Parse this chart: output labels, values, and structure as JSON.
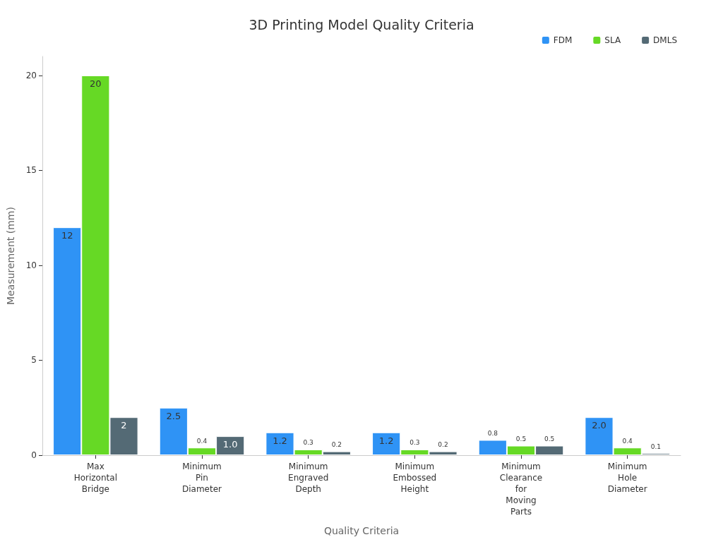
{
  "chart_data": {
    "type": "bar",
    "title": "3D Printing Model Quality Criteria",
    "xlabel": "Quality Criteria",
    "ylabel": "Measurement (mm)",
    "categories": [
      "Max\nHorizontal\nBridge",
      "Minimum\nPin\nDiameter",
      "Minimum\nEngraved\nDepth",
      "Minimum\nEmbossed\nHeight",
      "Minimum\nClearance\nfor\nMoving\nParts",
      "Minimum\nHole\nDiameter"
    ],
    "series": [
      {
        "name": "FDM",
        "color": "#2f93f5",
        "values": [
          12,
          2.5,
          1.2,
          1.2,
          0.8,
          2.0
        ],
        "value_labels": [
          "12",
          "2.5",
          "1.2",
          "1.2",
          "0.8",
          "2.0"
        ]
      },
      {
        "name": "SLA",
        "color": "#66d925",
        "values": [
          20,
          0.4,
          0.3,
          0.3,
          0.5,
          0.4
        ],
        "value_labels": [
          "20",
          "0.4",
          "0.3",
          "0.3",
          "0.5",
          "0.4"
        ]
      },
      {
        "name": "DMLS",
        "color": "#546a75",
        "values": [
          2,
          1.0,
          0.2,
          0.2,
          0.5,
          0.1
        ],
        "value_labels": [
          "2",
          "1.0",
          "0.2",
          "0.2",
          "0.5",
          "0.1"
        ]
      }
    ],
    "ylim": [
      0,
      21
    ],
    "yticks": [
      0,
      5,
      10,
      15,
      20
    ],
    "grid": false,
    "legend": "top right"
  }
}
